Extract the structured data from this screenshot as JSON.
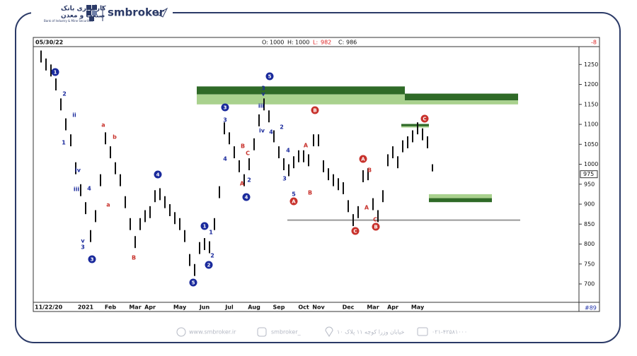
{
  "header": {
    "bank_name_line1": "کارگزاری بانک",
    "bank_name_line2": "صنعت و معدن",
    "bank_name_en": "Bank of Industry & Mine Securities",
    "brand": "smbroker"
  },
  "footer": {
    "website": "www.smbroker.ir",
    "instagram": "smbroker_",
    "address": "خیابان وزرا کوچه ۱۱ پلاک ۱۰",
    "phone": "۰۲۱-۴۲۵۸۱۰۰۰"
  },
  "chart_data": {
    "type": "ohlc",
    "date": "05/30/22",
    "ohlc_labels": [
      "O:",
      "H:",
      "L:",
      "C:"
    ],
    "ohlc_values": [
      1000,
      1000,
      982,
      986
    ],
    "change": -8,
    "last_price": 975,
    "bar_count_label": "#89",
    "color": "#111111",
    "categories": [
      "11/22/20",
      null,
      null,
      null,
      null,
      null,
      null,
      null,
      null,
      "2021",
      null,
      null,
      null,
      null,
      "Feb",
      null,
      null,
      null,
      null,
      "Mar",
      null,
      null,
      "Apr",
      null,
      null,
      null,
      null,
      null,
      "May",
      null,
      null,
      null,
      null,
      "Jun",
      null,
      null,
      null,
      null,
      "Jul",
      null,
      null,
      null,
      null,
      "Aug",
      null,
      null,
      null,
      null,
      "Sep",
      null,
      null,
      null,
      null,
      "Oct",
      null,
      null,
      "Nov",
      null,
      null,
      null,
      null,
      null,
      "Dec",
      null,
      null,
      null,
      null,
      "Mar",
      null,
      null,
      null,
      "Apr",
      null,
      null,
      null,
      null,
      "May",
      null,
      null,
      null
    ],
    "high": [
      1285,
      1265,
      1250,
      1215,
      1165,
      1115,
      1075,
      1005,
      950,
      905,
      835,
      885,
      975,
      1080,
      1045,
      1005,
      975,
      920,
      865,
      820,
      865,
      885,
      895,
      935,
      940,
      920,
      900,
      880,
      865,
      835,
      775,
      750,
      805,
      815,
      807,
      865,
      945,
      1105,
      1080,
      1045,
      1010,
      975,
      1015,
      1065,
      1125,
      1165,
      1135,
      1085,
      1045,
      1015,
      1000,
      1020,
      1035,
      1035,
      1025,
      1075,
      1075,
      1010,
      990,
      975,
      965,
      955,
      910,
      875,
      895,
      985,
      990,
      915,
      885,
      935,
      1025,
      1045,
      1020,
      1060,
      1070,
      1085,
      1105,
      1090,
      1070,
      1000
    ],
    "low": [
      1255,
      1235,
      1220,
      1185,
      1135,
      1085,
      1045,
      975,
      920,
      875,
      805,
      855,
      945,
      1050,
      1015,
      975,
      945,
      890,
      835,
      790,
      835,
      855,
      865,
      905,
      910,
      890,
      870,
      850,
      835,
      805,
      745,
      720,
      775,
      785,
      777,
      835,
      915,
      1075,
      1050,
      1015,
      980,
      945,
      985,
      1035,
      1095,
      1135,
      1105,
      1055,
      1015,
      985,
      970,
      990,
      1005,
      1005,
      995,
      1045,
      1045,
      980,
      960,
      945,
      935,
      925,
      880,
      845,
      865,
      955,
      960,
      885,
      855,
      905,
      995,
      1015,
      990,
      1030,
      1040,
      1055,
      1075,
      1060,
      1040,
      982
    ],
    "ylim": [
      654,
      1293
    ],
    "yticks": [
      1250,
      1200,
      1150,
      1100,
      1050,
      1000,
      950,
      900,
      850,
      800,
      750,
      700
    ],
    "zones": [
      {
        "low": 1175,
        "high": 1195,
        "color": "#2f6a27"
      },
      {
        "low": 1150,
        "high": 1175,
        "color": "#a9d18e"
      },
      {
        "low": 1160,
        "high": 1177,
        "color": "#2f6a27"
      },
      {
        "low": 1150,
        "high": 1160,
        "color": "#a9d18e"
      },
      {
        "low": 1095,
        "high": 1101,
        "color": "#2f6a27"
      },
      {
        "low": 1092,
        "high": 1095,
        "color": "#a9d18e"
      },
      {
        "low": 915,
        "high": 925,
        "color": "#a9d18e"
      },
      {
        "low": 905,
        "high": 915,
        "color": "#2f6a27"
      }
    ],
    "support_line": 860,
    "wave_labels": [
      {
        "text": "1",
        "style": "blue-circle"
      },
      {
        "text": "3",
        "style": "blue-circle"
      },
      {
        "text": "5",
        "style": "blue-circle"
      },
      {
        "text": "4",
        "style": "blue-circle"
      },
      {
        "text": "4",
        "style": "blue-circle"
      },
      {
        "text": "1",
        "style": "blue-circle"
      },
      {
        "text": "2",
        "style": "blue-circle"
      },
      {
        "text": "3",
        "style": "blue-circle"
      },
      {
        "text": "5",
        "style": "blue-circle"
      },
      {
        "text": "B",
        "style": "red-circle"
      },
      {
        "text": "C",
        "style": "red-circle"
      },
      {
        "text": "A",
        "style": "red-circle"
      },
      {
        "text": "A",
        "style": "red-circle"
      },
      {
        "text": "C",
        "style": "red-circle"
      },
      {
        "text": "B",
        "style": "red-circle"
      },
      {
        "text": "2",
        "style": "blue"
      },
      {
        "text": "ii",
        "style": "blue"
      },
      {
        "text": "1",
        "style": "blue"
      },
      {
        "text": "iv",
        "style": "blue"
      },
      {
        "text": "iii",
        "style": "blue"
      },
      {
        "text": "4",
        "style": "blue"
      },
      {
        "text": "v",
        "style": "blue"
      },
      {
        "text": "3",
        "style": "blue"
      },
      {
        "text": "a",
        "style": "red"
      },
      {
        "text": "b",
        "style": "red"
      },
      {
        "text": "a",
        "style": "red"
      },
      {
        "text": "B",
        "style": "red"
      },
      {
        "text": "A",
        "style": "red"
      },
      {
        "text": "B",
        "style": "red"
      },
      {
        "text": "C",
        "style": "red"
      },
      {
        "text": "3",
        "style": "blue"
      },
      {
        "text": "4",
        "style": "blue"
      },
      {
        "text": "1",
        "style": "blue"
      },
      {
        "text": "2",
        "style": "blue"
      },
      {
        "text": "2",
        "style": "blue"
      },
      {
        "text": "3",
        "style": "blue"
      },
      {
        "text": "v",
        "style": "blue"
      },
      {
        "text": "iii",
        "style": "blue"
      },
      {
        "text": "iv",
        "style": "blue"
      },
      {
        "text": "4",
        "style": "blue"
      },
      {
        "text": "2",
        "style": "blue"
      },
      {
        "text": "3",
        "style": "blue"
      },
      {
        "text": "4",
        "style": "blue"
      },
      {
        "text": "5",
        "style": "blue"
      },
      {
        "text": "A",
        "style": "red"
      },
      {
        "text": "B",
        "style": "red"
      },
      {
        "text": "B",
        "style": "red"
      },
      {
        "text": "A",
        "style": "red"
      },
      {
        "text": "C",
        "style": "red"
      }
    ]
  }
}
